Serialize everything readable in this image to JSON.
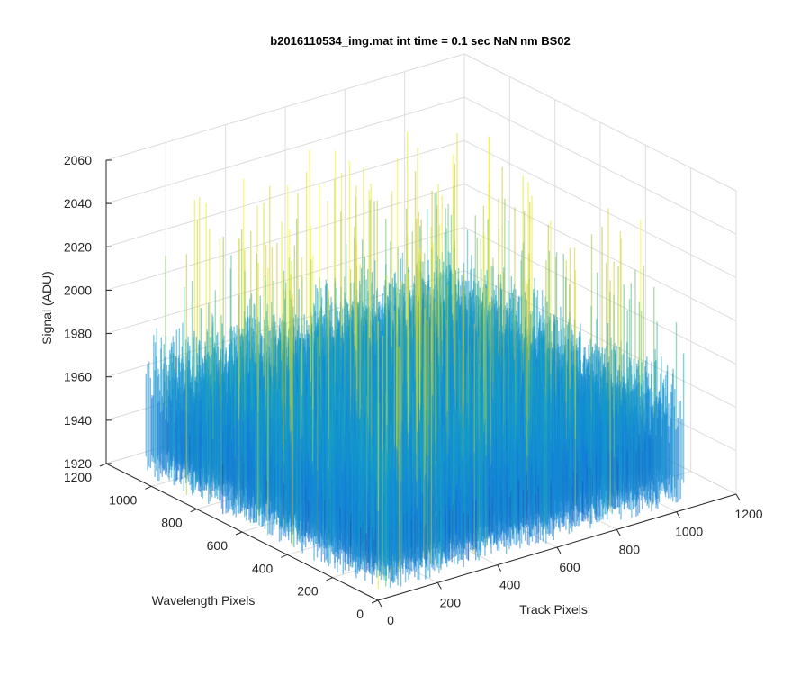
{
  "chart_data": {
    "type": "surface",
    "title": "b2016110534_img.mat int time = 0.1 sec  NaN nm BS02",
    "xlabel": "Track Pixels",
    "ylabel": "Wavelength Pixels",
    "zlabel": "Signal (ADU)",
    "xlim": [
      0,
      1200
    ],
    "ylim": [
      0,
      1200
    ],
    "zlim": [
      1920,
      2060
    ],
    "xticks": [
      "0",
      "200",
      "400",
      "600",
      "800",
      "1000",
      "1200"
    ],
    "yticks": [
      "0",
      "200",
      "400",
      "600",
      "800",
      "1000",
      "1200"
    ],
    "zticks": [
      "1920",
      "1940",
      "1960",
      "1980",
      "2000",
      "2020",
      "2040",
      "2060"
    ],
    "grid": true,
    "colormap": "parula",
    "data_extent": {
      "x": [
        0,
        1024
      ],
      "y": [
        0,
        1024
      ]
    },
    "signal_typical_range": [
      1935,
      1990
    ],
    "signal_peak": 2052,
    "signal_min": 1920
  }
}
